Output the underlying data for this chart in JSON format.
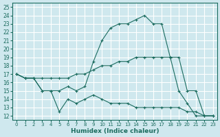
{
  "xlabel": "Humidex (Indice chaleur)",
  "bg_color": "#cfe8ee",
  "line_color": "#1a6b5e",
  "grid_color": "#b8d8e0",
  "xlim": [
    -0.5,
    23.5
  ],
  "ylim": [
    11.5,
    25.5
  ],
  "xticks": [
    0,
    1,
    2,
    3,
    4,
    5,
    6,
    7,
    8,
    9,
    10,
    11,
    12,
    13,
    14,
    15,
    16,
    17,
    18,
    19,
    20,
    21,
    22,
    23
  ],
  "yticks": [
    12,
    13,
    14,
    15,
    16,
    17,
    18,
    19,
    20,
    21,
    22,
    23,
    24,
    25
  ],
  "line1_x": [
    0,
    1,
    2,
    3,
    4,
    5,
    6,
    7,
    8,
    9,
    10,
    11,
    12,
    13,
    14,
    15,
    16,
    17,
    18,
    19,
    20,
    21,
    22,
    23
  ],
  "line1_y": [
    17,
    16.5,
    16.5,
    15,
    15,
    15,
    15.5,
    15,
    15.5,
    18.5,
    21,
    22.5,
    23,
    23,
    23.5,
    24,
    23,
    23,
    19,
    15,
    13.5,
    12,
    12,
    12
  ],
  "line2_x": [
    0,
    1,
    2,
    3,
    4,
    5,
    6,
    7,
    8,
    9,
    10,
    11,
    12,
    13,
    14,
    15,
    16,
    17,
    18,
    19,
    20,
    21,
    22,
    23
  ],
  "line2_y": [
    17,
    16.5,
    16.5,
    16.5,
    16.5,
    16.5,
    16.5,
    17,
    17,
    17.5,
    18,
    18,
    18.5,
    18.5,
    19,
    19,
    19,
    19,
    19,
    19,
    15,
    15,
    12,
    12
  ],
  "line3_x": [
    0,
    1,
    2,
    3,
    4,
    5,
    6,
    7,
    8,
    9,
    10,
    11,
    12,
    13,
    14,
    15,
    16,
    17,
    18,
    19,
    20,
    21,
    22,
    23
  ],
  "line3_y": [
    17,
    16.5,
    16.5,
    15,
    15,
    12.5,
    14,
    13.5,
    14,
    14.5,
    14,
    13.5,
    13.5,
    13.5,
    13,
    13,
    13,
    13,
    13,
    13,
    12.5,
    12.5,
    12,
    12
  ]
}
